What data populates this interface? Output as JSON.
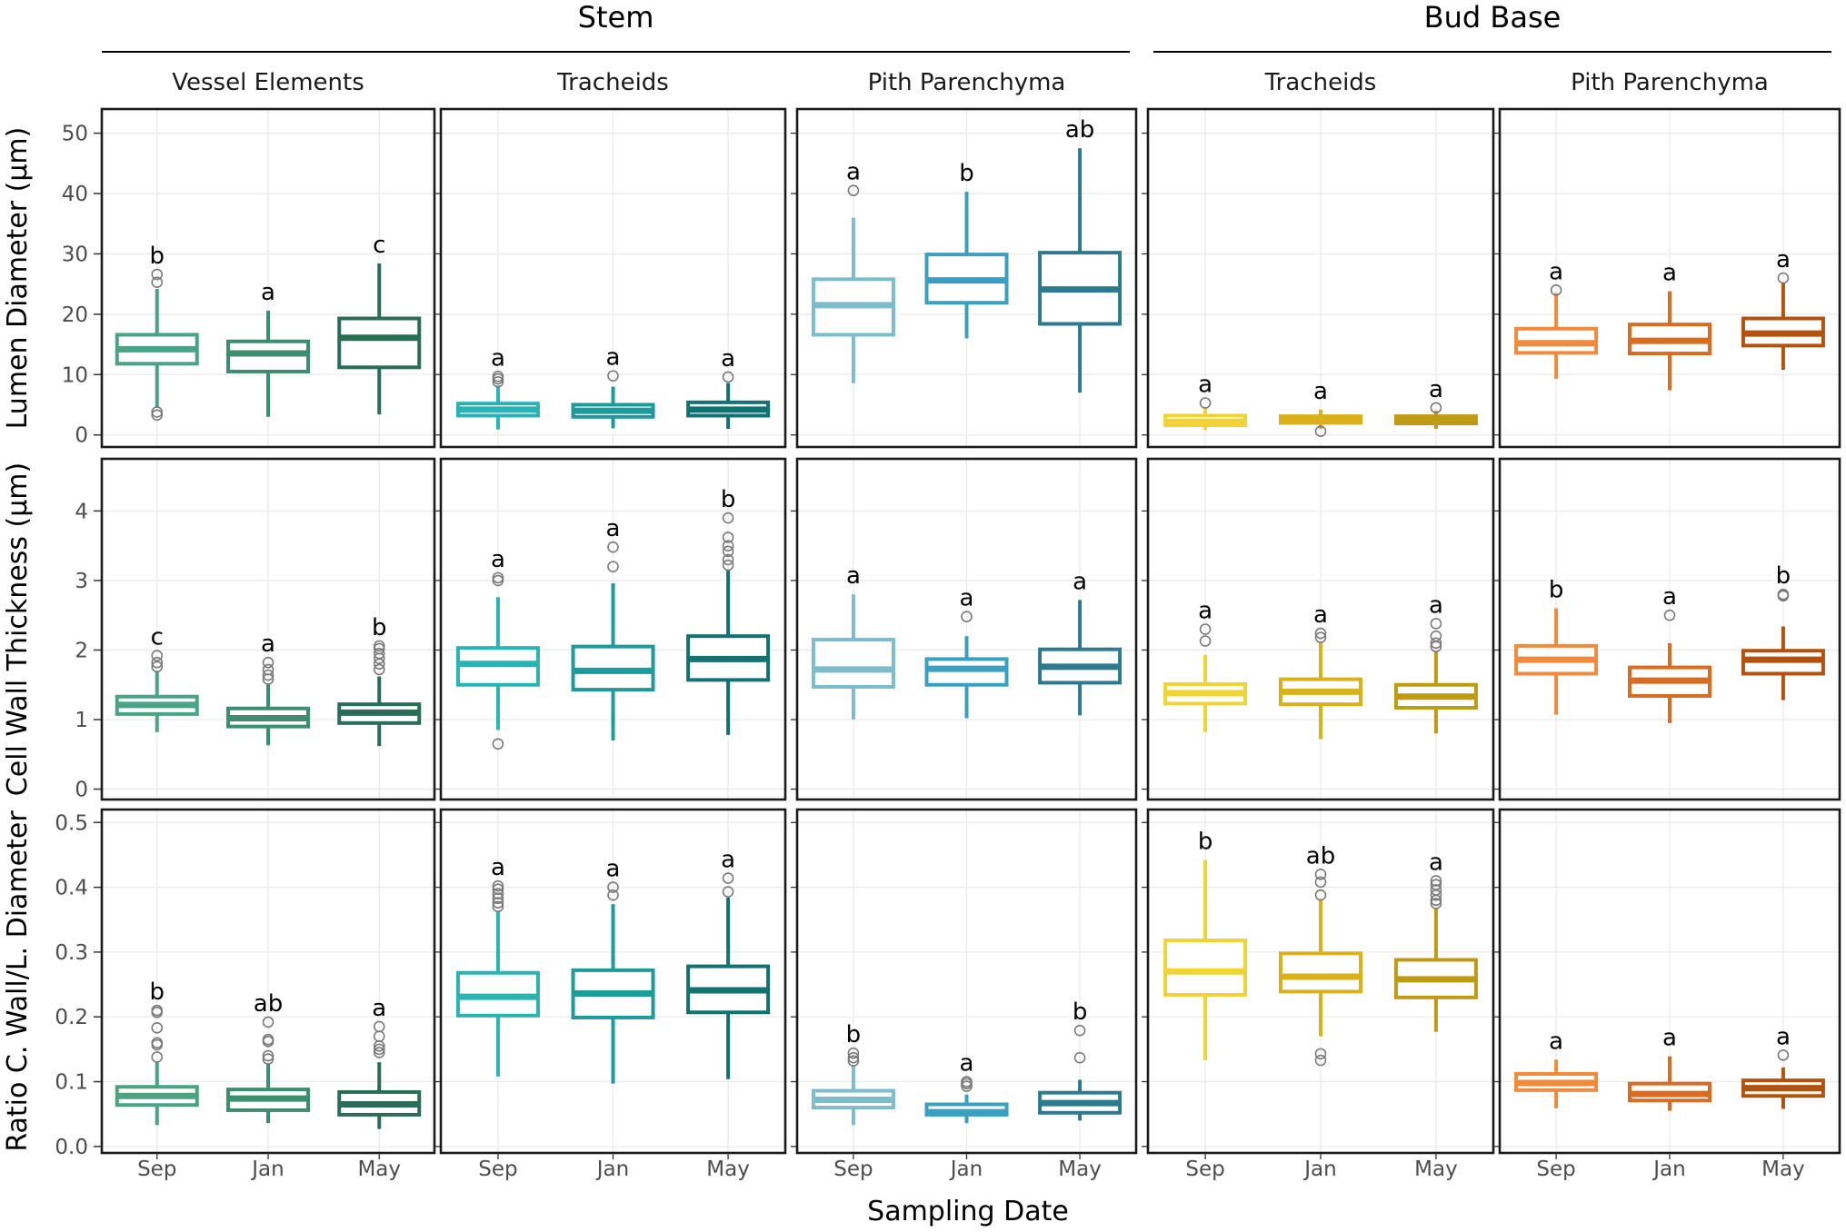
{
  "chart_data": {
    "type": "boxplot",
    "x_title": "Sampling Date",
    "categories": [
      "Sep",
      "Jan",
      "May"
    ],
    "groups": [
      {
        "name": "Stem",
        "facets": [
          "Vessel Elements",
          "Tracheids",
          "Pith Parenchyma"
        ]
      },
      {
        "name": "Bud Base",
        "facets": [
          "Tracheids",
          "Pith Parenchyma"
        ]
      }
    ],
    "columns": [
      {
        "group": "Stem",
        "label": "Vessel Elements",
        "colors": [
          "#4aa383",
          "#3b8f6e",
          "#2a6d55"
        ]
      },
      {
        "group": "Stem",
        "label": "Tracheids",
        "colors": [
          "#2bb3b3",
          "#1f9a9a",
          "#127272"
        ]
      },
      {
        "group": "Stem",
        "label": "Pith Parenchyma",
        "colors": [
          "#7dbccb",
          "#3b9fc0",
          "#2d7a8c"
        ]
      },
      {
        "group": "Bud Base",
        "label": "Tracheids",
        "colors": [
          "#f0d435",
          "#dab11a",
          "#bf9a15"
        ]
      },
      {
        "group": "Bud Base",
        "label": "Pith Parenchyma",
        "colors": [
          "#f08a3f",
          "#d86c23",
          "#b3520e"
        ]
      }
    ],
    "rows": [
      {
        "ylabel": "Lumen Diameter (µm)",
        "ylim": [
          -2,
          54
        ],
        "yticks": [
          0,
          10,
          20,
          30,
          40,
          50
        ],
        "tick_labels": [
          "0",
          "10",
          "20",
          "30",
          "40",
          "50"
        ],
        "panels": [
          {
            "boxes": [
              {
                "category": "Sep",
                "whisker_low": 4.5,
                "q1": 11.8,
                "median": 14.2,
                "q3": 16.6,
                "whisker_high": 24.2,
                "outliers": [
                  25.3,
                  26.6,
                  3.3,
                  3.8
                ],
                "letter": "b"
              },
              {
                "category": "Jan",
                "whisker_low": 3,
                "q1": 10.5,
                "median": 13.5,
                "q3": 15.5,
                "whisker_high": 20.6,
                "outliers": [],
                "letter": "a"
              },
              {
                "category": "May",
                "whisker_low": 3.4,
                "q1": 11.2,
                "median": 16.1,
                "q3": 19.3,
                "whisker_high": 28.4,
                "outliers": [],
                "letter": "c"
              }
            ]
          },
          {
            "boxes": [
              {
                "category": "Sep",
                "whisker_low": 0.9,
                "q1": 3.2,
                "median": 4.2,
                "q3": 5.2,
                "whisker_high": 8.2,
                "outliers": [
                  8.8,
                  9.3,
                  9.7
                ],
                "letter": "a"
              },
              {
                "category": "Jan",
                "whisker_low": 1.1,
                "q1": 3.0,
                "median": 4.0,
                "q3": 5.0,
                "whisker_high": 8.0,
                "outliers": [
                  9.8
                ],
                "letter": "a"
              },
              {
                "category": "May",
                "whisker_low": 1.0,
                "q1": 3.2,
                "median": 4.2,
                "q3": 5.4,
                "whisker_high": 8.6,
                "outliers": [
                  9.6
                ],
                "letter": "a"
              }
            ]
          },
          {
            "boxes": [
              {
                "category": "Sep",
                "whisker_low": 8.6,
                "q1": 16.6,
                "median": 21.5,
                "q3": 25.8,
                "whisker_high": 36,
                "outliers": [
                  40.5
                ],
                "letter": "a"
              },
              {
                "category": "Jan",
                "whisker_low": 16,
                "q1": 21.9,
                "median": 25.6,
                "q3": 29.9,
                "whisker_high": 40.3,
                "outliers": [],
                "letter": "b"
              },
              {
                "category": "May",
                "whisker_low": 7,
                "q1": 18.4,
                "median": 24.1,
                "q3": 30.2,
                "whisker_high": 47.5,
                "outliers": [],
                "letter": "ab"
              }
            ]
          },
          {
            "boxes": [
              {
                "category": "Sep",
                "whisker_low": 0.8,
                "q1": 1.6,
                "median": 2.2,
                "q3": 3.2,
                "whisker_high": 4.6,
                "outliers": [
                  5.3
                ],
                "letter": "a"
              },
              {
                "category": "Jan",
                "whisker_low": 1.0,
                "q1": 2.0,
                "median": 2.6,
                "q3": 3.1,
                "whisker_high": 4.2,
                "outliers": [
                  0.6
                ],
                "letter": "a"
              },
              {
                "category": "May",
                "whisker_low": 1.0,
                "q1": 1.9,
                "median": 2.6,
                "q3": 3.1,
                "whisker_high": 4.0,
                "outliers": [
                  4.5
                ],
                "letter": "a"
              }
            ]
          },
          {
            "boxes": [
              {
                "category": "Sep",
                "whisker_low": 9.3,
                "q1": 13.6,
                "median": 15.2,
                "q3": 17.6,
                "whisker_high": 23.5,
                "outliers": [
                  24
                ],
                "letter": "a"
              },
              {
                "category": "Jan",
                "whisker_low": 7.4,
                "q1": 13.5,
                "median": 15.6,
                "q3": 18.3,
                "whisker_high": 23.8,
                "outliers": [],
                "letter": "a"
              },
              {
                "category": "May",
                "whisker_low": 10.8,
                "q1": 14.8,
                "median": 16.8,
                "q3": 19.3,
                "whisker_high": 25.2,
                "outliers": [
                  26
                ],
                "letter": "a"
              }
            ]
          }
        ]
      },
      {
        "ylabel": "Cell Wall Thickness (µm)",
        "ylim": [
          -0.15,
          4.75
        ],
        "yticks": [
          0,
          1,
          2,
          3,
          4
        ],
        "tick_labels": [
          "0",
          "1",
          "2",
          "3",
          "4"
        ],
        "panels": [
          {
            "boxes": [
              {
                "category": "Sep",
                "whisker_low": 0.82,
                "q1": 1.08,
                "median": 1.21,
                "q3": 1.33,
                "whisker_high": 1.68,
                "outliers": [
                  1.76,
                  1.82,
                  1.92
                ],
                "letter": "c"
              },
              {
                "category": "Jan",
                "whisker_low": 0.63,
                "q1": 0.9,
                "median": 1.02,
                "q3": 1.16,
                "whisker_high": 1.52,
                "outliers": [
                  1.58,
                  1.64,
                  1.72,
                  1.82
                ],
                "letter": "a"
              },
              {
                "category": "May",
                "whisker_low": 0.62,
                "q1": 0.95,
                "median": 1.1,
                "q3": 1.22,
                "whisker_high": 1.62,
                "outliers": [
                  1.72,
                  1.8,
                  1.88,
                  1.95,
                  2.02,
                  2.06
                ],
                "letter": "b"
              }
            ]
          },
          {
            "boxes": [
              {
                "category": "Sep",
                "whisker_low": 0.85,
                "q1": 1.5,
                "median": 1.8,
                "q3": 2.03,
                "whisker_high": 2.76,
                "outliers": [
                  3.0,
                  3.04,
                  0.65
                ],
                "letter": "a"
              },
              {
                "category": "Jan",
                "whisker_low": 0.7,
                "q1": 1.43,
                "median": 1.7,
                "q3": 2.05,
                "whisker_high": 2.96,
                "outliers": [
                  3.2,
                  3.48
                ],
                "letter": "a"
              },
              {
                "category": "May",
                "whisker_low": 0.78,
                "q1": 1.57,
                "median": 1.87,
                "q3": 2.2,
                "whisker_high": 3.15,
                "outliers": [
                  3.22,
                  3.3,
                  3.42,
                  3.5,
                  3.62,
                  3.9
                ],
                "letter": "b"
              }
            ]
          },
          {
            "boxes": [
              {
                "category": "Sep",
                "whisker_low": 1.0,
                "q1": 1.47,
                "median": 1.72,
                "q3": 2.15,
                "whisker_high": 2.8,
                "outliers": [],
                "letter": "a"
              },
              {
                "category": "Jan",
                "whisker_low": 1.02,
                "q1": 1.5,
                "median": 1.73,
                "q3": 1.87,
                "whisker_high": 2.2,
                "outliers": [
                  2.48
                ],
                "letter": "a"
              },
              {
                "category": "May",
                "whisker_low": 1.06,
                "q1": 1.53,
                "median": 1.76,
                "q3": 2.01,
                "whisker_high": 2.72,
                "outliers": [],
                "letter": "a"
              }
            ]
          },
          {
            "boxes": [
              {
                "category": "Sep",
                "whisker_low": 0.82,
                "q1": 1.23,
                "median": 1.38,
                "q3": 1.51,
                "whisker_high": 1.93,
                "outliers": [
                  2.13,
                  2.3
                ],
                "letter": "a"
              },
              {
                "category": "Jan",
                "whisker_low": 0.72,
                "q1": 1.22,
                "median": 1.4,
                "q3": 1.58,
                "whisker_high": 2.1,
                "outliers": [
                  2.18,
                  2.24
                ],
                "letter": "a"
              },
              {
                "category": "May",
                "whisker_low": 0.8,
                "q1": 1.17,
                "median": 1.33,
                "q3": 1.5,
                "whisker_high": 1.98,
                "outliers": [
                  2.05,
                  2.1,
                  2.2,
                  2.38
                ],
                "letter": "a"
              }
            ]
          },
          {
            "boxes": [
              {
                "category": "Sep",
                "whisker_low": 1.07,
                "q1": 1.66,
                "median": 1.86,
                "q3": 2.06,
                "whisker_high": 2.6,
                "outliers": [],
                "letter": "b"
              },
              {
                "category": "Jan",
                "whisker_low": 0.95,
                "q1": 1.34,
                "median": 1.56,
                "q3": 1.75,
                "whisker_high": 2.1,
                "outliers": [
                  2.5
                ],
                "letter": "a"
              },
              {
                "category": "May",
                "whisker_low": 1.28,
                "q1": 1.66,
                "median": 1.86,
                "q3": 1.99,
                "whisker_high": 2.34,
                "outliers": [
                  2.78,
                  2.8
                ],
                "letter": "b"
              }
            ]
          }
        ]
      },
      {
        "ylabel": "Ratio C. Wall/L. Diameter",
        "ylim": [
          -0.01,
          0.52
        ],
        "yticks": [
          0,
          0.1,
          0.2,
          0.3,
          0.4,
          0.5
        ],
        "tick_labels": [
          "0.0",
          "0.1",
          "0.2",
          "0.3",
          "0.4",
          "0.5"
        ],
        "panels": [
          {
            "boxes": [
              {
                "category": "Sep",
                "whisker_low": 0.033,
                "q1": 0.064,
                "median": 0.078,
                "q3": 0.092,
                "whisker_high": 0.13,
                "outliers": [
                  0.138,
                  0.157,
                  0.16,
                  0.183,
                  0.207,
                  0.21
                ],
                "letter": "b"
              },
              {
                "category": "Jan",
                "whisker_low": 0.036,
                "q1": 0.056,
                "median": 0.074,
                "q3": 0.088,
                "whisker_high": 0.128,
                "outliers": [
                  0.135,
                  0.14,
                  0.162,
                  0.165,
                  0.192
                ],
                "letter": "ab"
              },
              {
                "category": "May",
                "whisker_low": 0.027,
                "q1": 0.049,
                "median": 0.065,
                "q3": 0.084,
                "whisker_high": 0.13,
                "outliers": [
                  0.145,
                  0.15,
                  0.155,
                  0.17,
                  0.185
                ],
                "letter": "a"
              }
            ]
          },
          {
            "boxes": [
              {
                "category": "Sep",
                "whisker_low": 0.108,
                "q1": 0.202,
                "median": 0.231,
                "q3": 0.268,
                "whisker_high": 0.364,
                "outliers": [
                  0.37,
                  0.376,
                  0.383,
                  0.39,
                  0.397,
                  0.402
                ],
                "letter": "a"
              },
              {
                "category": "Jan",
                "whisker_low": 0.097,
                "q1": 0.199,
                "median": 0.236,
                "q3": 0.272,
                "whisker_high": 0.374,
                "outliers": [
                  0.388,
                  0.4
                ],
                "letter": "a"
              },
              {
                "category": "May",
                "whisker_low": 0.104,
                "q1": 0.207,
                "median": 0.241,
                "q3": 0.278,
                "whisker_high": 0.384,
                "outliers": [
                  0.393,
                  0.414
                ],
                "letter": "a"
              }
            ]
          },
          {
            "boxes": [
              {
                "category": "Sep",
                "whisker_low": 0.033,
                "q1": 0.06,
                "median": 0.072,
                "q3": 0.086,
                "whisker_high": 0.125,
                "outliers": [
                  0.132,
                  0.137,
                  0.144
                ],
                "letter": "b"
              },
              {
                "category": "Jan",
                "whisker_low": 0.036,
                "q1": 0.049,
                "median": 0.053,
                "q3": 0.065,
                "whisker_high": 0.08,
                "outliers": [
                  0.093,
                  0.097,
                  0.1
                ],
                "letter": "a"
              },
              {
                "category": "May",
                "whisker_low": 0.04,
                "q1": 0.052,
                "median": 0.067,
                "q3": 0.083,
                "whisker_high": 0.103,
                "outliers": [
                  0.137,
                  0.179
                ],
                "letter": "b"
              }
            ]
          },
          {
            "boxes": [
              {
                "category": "Sep",
                "whisker_low": 0.133,
                "q1": 0.234,
                "median": 0.27,
                "q3": 0.318,
                "whisker_high": 0.442,
                "outliers": [],
                "letter": "b"
              },
              {
                "category": "Jan",
                "whisker_low": 0.17,
                "q1": 0.239,
                "median": 0.262,
                "q3": 0.298,
                "whisker_high": 0.382,
                "outliers": [
                  0.133,
                  0.143,
                  0.388,
                  0.408,
                  0.42
                ],
                "letter": "ab"
              },
              {
                "category": "May",
                "whisker_low": 0.177,
                "q1": 0.23,
                "median": 0.258,
                "q3": 0.288,
                "whisker_high": 0.368,
                "outliers": [
                  0.375,
                  0.38,
                  0.388,
                  0.396,
                  0.404,
                  0.41
                ],
                "letter": "a"
              }
            ]
          },
          {
            "boxes": [
              {
                "category": "Sep",
                "whisker_low": 0.059,
                "q1": 0.087,
                "median": 0.098,
                "q3": 0.112,
                "whisker_high": 0.134,
                "outliers": [],
                "letter": "a"
              },
              {
                "category": "Jan",
                "whisker_low": 0.055,
                "q1": 0.071,
                "median": 0.081,
                "q3": 0.097,
                "whisker_high": 0.139,
                "outliers": [],
                "letter": "a"
              },
              {
                "category": "May",
                "whisker_low": 0.058,
                "q1": 0.078,
                "median": 0.09,
                "q3": 0.102,
                "whisker_high": 0.122,
                "outliers": [
                  0.141
                ],
                "letter": "a"
              }
            ]
          }
        ]
      }
    ]
  }
}
